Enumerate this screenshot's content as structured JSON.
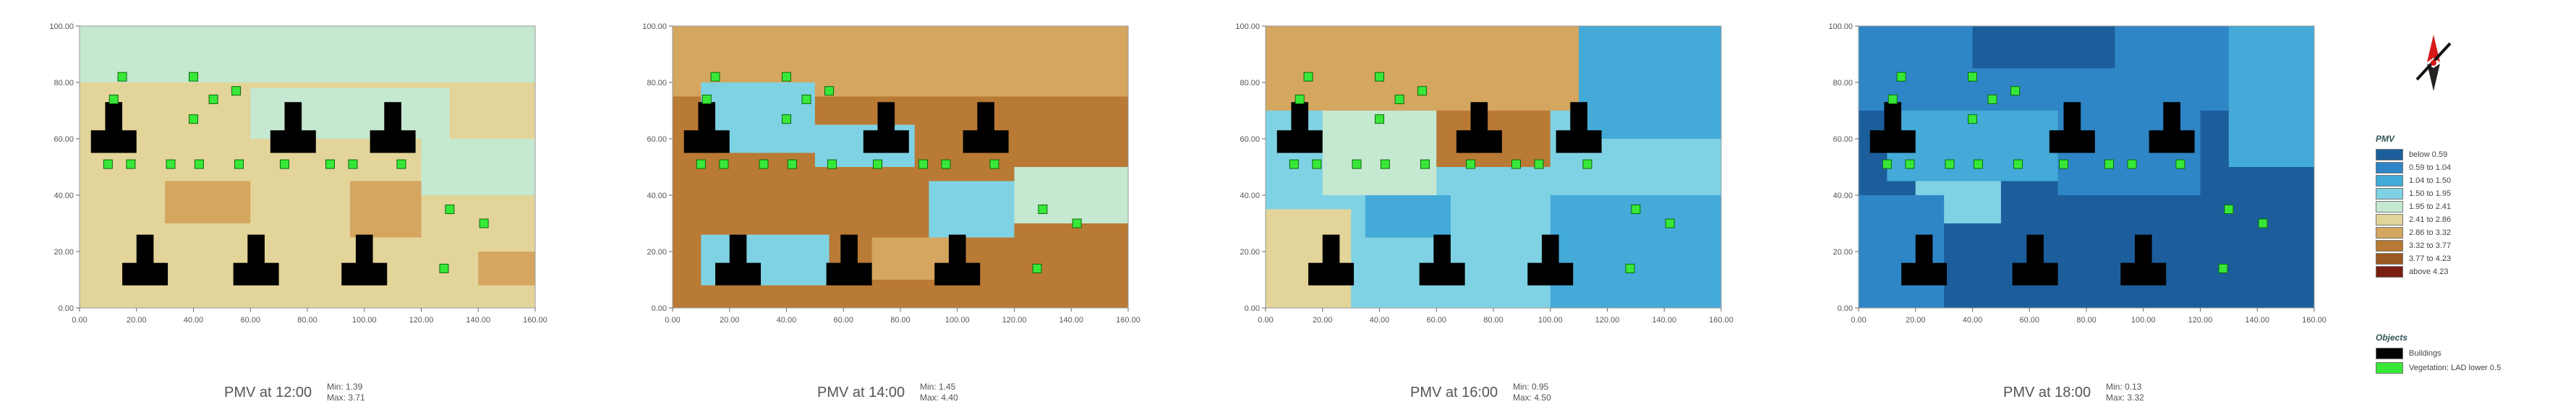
{
  "chart_data": [
    {
      "type": "heatmap",
      "title": "PMV at 12:00",
      "min_label": "Min: 1.39",
      "max_label": "Max: 3.71",
      "xlim": [
        0,
        160
      ],
      "ylim": [
        0,
        100
      ],
      "x_ticks": [
        "0.00",
        "20.00",
        "40.00",
        "60.00",
        "80.00",
        "100.00",
        "120.00",
        "140.00",
        "160.00"
      ],
      "y_ticks": [
        "0.00",
        "20.00",
        "40.00",
        "60.00",
        "80.00",
        "100.00"
      ],
      "base_class": 5,
      "field": [
        {
          "x": 0,
          "y": 80,
          "w": 160,
          "h": 20,
          "cls": 4
        },
        {
          "x": 60,
          "y": 60,
          "w": 70,
          "h": 18,
          "cls": 4
        },
        {
          "x": 30,
          "y": 30,
          "w": 30,
          "h": 15,
          "cls": 6
        },
        {
          "x": 95,
          "y": 25,
          "w": 25,
          "h": 20,
          "cls": 6
        },
        {
          "x": 0,
          "y": 85,
          "w": 40,
          "h": 15,
          "cls": 4
        },
        {
          "x": 120,
          "y": 40,
          "w": 40,
          "h": 20,
          "cls": 4
        },
        {
          "x": 140,
          "y": 0,
          "w": 20,
          "h": 20,
          "cls": 6
        },
        {
          "x": 0,
          "y": 0,
          "w": 160,
          "h": 8,
          "cls": 5
        }
      ]
    },
    {
      "type": "heatmap",
      "title": "PMV at 14:00",
      "min_label": "Min: 1.45",
      "max_label": "Max: 4.40",
      "xlim": [
        0,
        160
      ],
      "ylim": [
        0,
        100
      ],
      "x_ticks": [
        "0.00",
        "20.00",
        "40.00",
        "60.00",
        "80.00",
        "100.00",
        "120.00",
        "140.00",
        "160.00"
      ],
      "y_ticks": [
        "0.00",
        "20.00",
        "40.00",
        "60.00",
        "80.00",
        "100.00"
      ],
      "base_class": 7,
      "field": [
        {
          "x": 0,
          "y": 75,
          "w": 160,
          "h": 25,
          "cls": 6
        },
        {
          "x": 10,
          "y": 55,
          "w": 40,
          "h": 25,
          "cls": 3
        },
        {
          "x": 50,
          "y": 50,
          "w": 35,
          "h": 15,
          "cls": 3
        },
        {
          "x": 10,
          "y": 8,
          "w": 45,
          "h": 18,
          "cls": 3
        },
        {
          "x": 90,
          "y": 25,
          "w": 30,
          "h": 20,
          "cls": 3
        },
        {
          "x": 120,
          "y": 30,
          "w": 40,
          "h": 20,
          "cls": 4
        },
        {
          "x": 70,
          "y": 10,
          "w": 30,
          "h": 15,
          "cls": 6
        },
        {
          "x": 0,
          "y": 0,
          "w": 160,
          "h": 8,
          "cls": 7
        }
      ]
    },
    {
      "type": "heatmap",
      "title": "PMV at 16:00",
      "min_label": "Min: 0.95",
      "max_label": "Max: 4.50",
      "xlim": [
        0,
        160
      ],
      "ylim": [
        0,
        100
      ],
      "x_ticks": [
        "0.00",
        "20.00",
        "40.00",
        "60.00",
        "80.00",
        "100.00",
        "120.00",
        "140.00",
        "160.00"
      ],
      "y_ticks": [
        "0.00",
        "20.00",
        "40.00",
        "60.00",
        "80.00",
        "100.00"
      ],
      "base_class": 3,
      "field": [
        {
          "x": 0,
          "y": 70,
          "w": 110,
          "h": 30,
          "cls": 6
        },
        {
          "x": 20,
          "y": 40,
          "w": 40,
          "h": 30,
          "cls": 4
        },
        {
          "x": 60,
          "y": 50,
          "w": 40,
          "h": 20,
          "cls": 7
        },
        {
          "x": 0,
          "y": 0,
          "w": 30,
          "h": 35,
          "cls": 5
        },
        {
          "x": 110,
          "y": 60,
          "w": 50,
          "h": 40,
          "cls": 2
        },
        {
          "x": 100,
          "y": 0,
          "w": 60,
          "h": 40,
          "cls": 2
        },
        {
          "x": 35,
          "y": 25,
          "w": 30,
          "h": 15,
          "cls": 2
        }
      ]
    },
    {
      "type": "heatmap",
      "title": "PMV at 18:00",
      "min_label": "Min: 0.13",
      "max_label": "Max: 3.32",
      "xlim": [
        0,
        160
      ],
      "ylim": [
        0,
        100
      ],
      "x_ticks": [
        "0.00",
        "20.00",
        "40.00",
        "60.00",
        "80.00",
        "100.00",
        "120.00",
        "140.00",
        "160.00"
      ],
      "y_ticks": [
        "0.00",
        "20.00",
        "40.00",
        "60.00",
        "80.00",
        "100.00"
      ],
      "base_class": 0,
      "field": [
        {
          "x": 0,
          "y": 70,
          "w": 160,
          "h": 30,
          "cls": 1
        },
        {
          "x": 10,
          "y": 45,
          "w": 60,
          "h": 25,
          "cls": 2
        },
        {
          "x": 70,
          "y": 40,
          "w": 50,
          "h": 30,
          "cls": 1
        },
        {
          "x": 20,
          "y": 30,
          "w": 30,
          "h": 15,
          "cls": 3
        },
        {
          "x": 0,
          "y": 0,
          "w": 30,
          "h": 40,
          "cls": 1
        },
        {
          "x": 130,
          "y": 50,
          "w": 30,
          "h": 50,
          "cls": 2
        },
        {
          "x": 40,
          "y": 85,
          "w": 50,
          "h": 15,
          "cls": 0
        }
      ]
    }
  ],
  "buildings": [
    {
      "cx": 12,
      "y0": 55
    },
    {
      "cx": 23,
      "y0": 8
    },
    {
      "cx": 62,
      "y0": 8
    },
    {
      "cx": 100,
      "y0": 8
    },
    {
      "cx": 75,
      "y0": 55
    },
    {
      "cx": 110,
      "y0": 55
    }
  ],
  "vegetation": [
    [
      15,
      82
    ],
    [
      40,
      82
    ],
    [
      55,
      77
    ],
    [
      12,
      74
    ],
    [
      47,
      74
    ],
    [
      40,
      67
    ],
    [
      10,
      51
    ],
    [
      18,
      51
    ],
    [
      32,
      51
    ],
    [
      42,
      51
    ],
    [
      56,
      51
    ],
    [
      72,
      51
    ],
    [
      88,
      51
    ],
    [
      96,
      51
    ],
    [
      113,
      51
    ],
    [
      130,
      35
    ],
    [
      142,
      30
    ],
    [
      128,
      14
    ]
  ],
  "legend": {
    "pmv_heading": "PMV",
    "pmv_classes": [
      {
        "label": "below 0.59",
        "color": "#1c5e9c"
      },
      {
        "label": "0.59 to 1.04",
        "color": "#2f86c6"
      },
      {
        "label": "1.04 to 1.50",
        "color": "#44aad8"
      },
      {
        "label": "1.50 to 1.95",
        "color": "#7fd2e3"
      },
      {
        "label": "1.95 to 2.41",
        "color": "#c5e8d0"
      },
      {
        "label": "2.41 to 2.86",
        "color": "#e3d49a"
      },
      {
        "label": "2.86 to 3.32",
        "color": "#d4a660"
      },
      {
        "label": "3.32 to 3.77",
        "color": "#b97a35"
      },
      {
        "label": "3.77 to 4.23",
        "color": "#9b5a22"
      },
      {
        "label": "above 4.23",
        "color": "#7a1e12"
      }
    ],
    "objects_heading": "Objects",
    "objects": [
      {
        "label": "Buildings",
        "color": "#000000"
      },
      {
        "label": "Vegetation: LAD lower 0.5",
        "color": "#38e838"
      }
    ]
  },
  "compass_icon": "north-arrow-icon"
}
